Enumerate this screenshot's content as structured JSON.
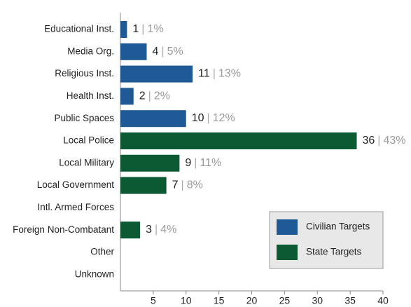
{
  "chart_data": {
    "type": "hbar",
    "categories": [
      "Educational Inst.",
      "Media Org.",
      "Religious Inst.",
      "Health Inst.",
      "Public Spaces",
      "Local Police",
      "Local Military",
      "Local Government",
      "Intl. Armed Forces",
      "Foreign Non-Combatant",
      "Other",
      "Unknown"
    ],
    "series": [
      {
        "name": "Civilian Targets",
        "color": "#1f5a96",
        "values": [
          1,
          4,
          11,
          2,
          10,
          null,
          null,
          null,
          null,
          null,
          null,
          null
        ],
        "percent_labels": [
          "1%",
          "5%",
          "13%",
          "2%",
          "12%",
          null,
          null,
          null,
          null,
          null,
          null,
          null
        ]
      },
      {
        "name": "State Targets",
        "color": "#0b5a33",
        "values": [
          null,
          null,
          null,
          null,
          null,
          36,
          9,
          7,
          null,
          3,
          null,
          null
        ],
        "percent_labels": [
          null,
          null,
          null,
          null,
          null,
          "43%",
          "11%",
          "8%",
          null,
          "4%",
          null,
          null
        ]
      }
    ],
    "separator": "|",
    "xlim": [
      0,
      40
    ],
    "xticks": [
      5,
      10,
      15,
      20,
      25,
      30,
      35,
      40
    ],
    "legend": "lower right"
  }
}
